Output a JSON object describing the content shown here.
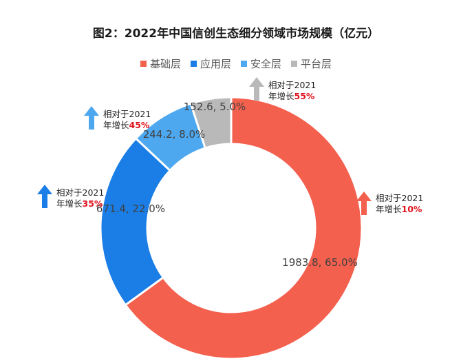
{
  "chart_data": {
    "type": "pie",
    "title": "图2：2022年中国信创生态细分领域市场规模（亿元）",
    "categories": [
      "基础层",
      "应用层",
      "安全层",
      "平台层"
    ],
    "values": [
      1983.8,
      671.4,
      244.2,
      152.6
    ],
    "percents": [
      "65.0%",
      "22.0%",
      "8.0%",
      "5.0%"
    ],
    "data_labels": [
      "1983.8, 65.0%",
      "671.4, 22.0%",
      "244.2, 8.0%",
      "152.6, 5.0%"
    ],
    "colors": [
      "#f4604e",
      "#1a7ee6",
      "#4da8f0",
      "#b9b9b9"
    ],
    "legend_position": "top-center",
    "annotations": [
      {
        "line1": "相对于2021",
        "line2_prefix": "年增长",
        "growth": "10%"
      },
      {
        "line1": "相对于2021",
        "line2_prefix": "年增长",
        "growth": "35%"
      },
      {
        "line1": "相对于2021",
        "line2_prefix": "年增长",
        "growth": "45%"
      },
      {
        "line1": "相对于2021",
        "line2_prefix": "年增长",
        "growth": "55%"
      }
    ]
  }
}
